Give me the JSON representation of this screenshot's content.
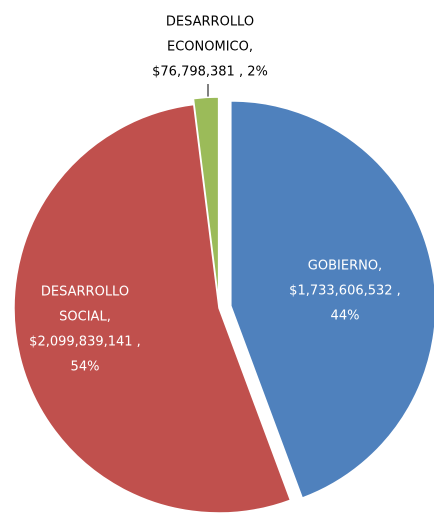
{
  "chart_data": {
    "type": "pie",
    "values": [
      1733606532,
      2099839141,
      76798381
    ],
    "colors": [
      "#4f81bd",
      "#c0504d",
      "#9bbb59"
    ],
    "label_lines": [
      [
        "GOBIERNO,",
        "$1,733,606,532 ,",
        "44%"
      ],
      [
        "DESARROLLO",
        "SOCIAL,",
        "$2,099,839,141 ,",
        "54%"
      ],
      [
        "DESARROLLO",
        "ECONOMICO,",
        "$76,798,381 , 2%"
      ]
    ]
  }
}
